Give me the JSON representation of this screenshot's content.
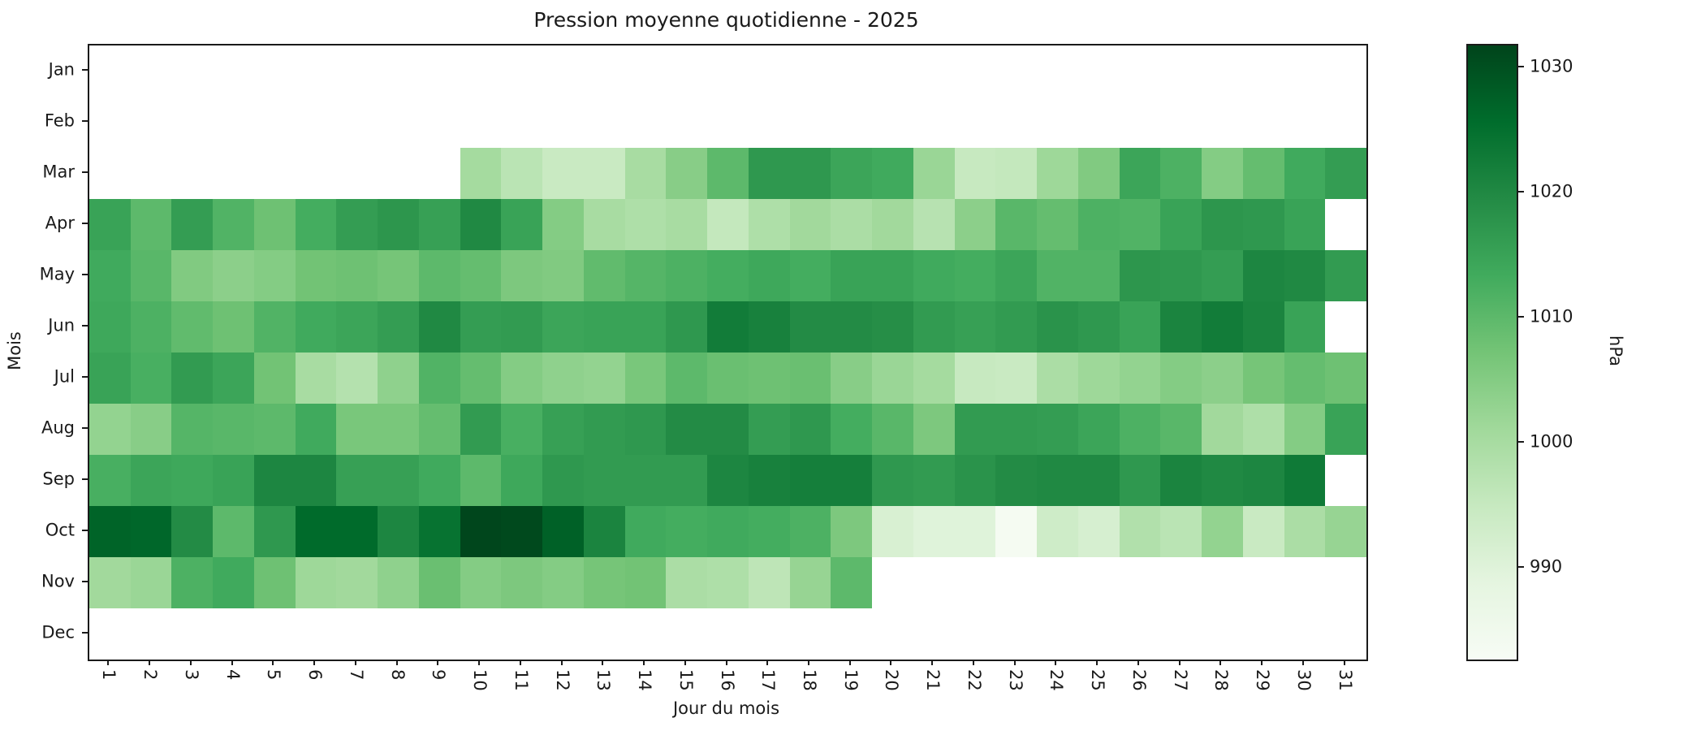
{
  "figure": {
    "title": "Pression moyenne quotidienne - 2025",
    "xlabel": "Jour du mois",
    "ylabel": "Mois",
    "background_color": "#ffffff",
    "axis_color": "#1a1a1a"
  },
  "chart_data": {
    "type": "heatmap",
    "title": "Pression moyenne quotidienne - 2025",
    "xlabel": "Jour du mois",
    "ylabel": "Mois",
    "x": [
      "1",
      "2",
      "3",
      "4",
      "5",
      "6",
      "7",
      "8",
      "9",
      "10",
      "11",
      "12",
      "13",
      "14",
      "15",
      "16",
      "17",
      "18",
      "19",
      "20",
      "21",
      "22",
      "23",
      "24",
      "25",
      "26",
      "27",
      "28",
      "29",
      "30",
      "31"
    ],
    "y": [
      "Jan",
      "Feb",
      "Mar",
      "Apr",
      "May",
      "Jun",
      "Jul",
      "Aug",
      "Sep",
      "Oct",
      "Nov",
      "Dec"
    ],
    "colorbar": {
      "label": "hPa",
      "ticks": [
        1030,
        1020,
        1010,
        1000,
        990
      ],
      "vmin": 982.7,
      "vmax": 1031.8,
      "colormap": "Greens",
      "colormap_stops": [
        "#f7fcf5",
        "#e5f5e0",
        "#c7e9c0",
        "#a1d99b",
        "#74c476",
        "#41ab5d",
        "#238b45",
        "#006d2c",
        "#00441b"
      ]
    },
    "missing_color": "#ffffff",
    "values": [
      [
        null,
        null,
        null,
        null,
        null,
        null,
        null,
        null,
        null,
        null,
        null,
        null,
        null,
        null,
        null,
        null,
        null,
        null,
        null,
        null,
        null,
        null,
        null,
        null,
        null,
        null,
        null,
        null,
        null,
        null,
        null
      ],
      [
        null,
        null,
        null,
        null,
        null,
        null,
        null,
        null,
        null,
        null,
        null,
        null,
        null,
        null,
        null,
        null,
        null,
        null,
        null,
        null,
        null,
        null,
        null,
        null,
        null,
        null,
        null,
        null,
        null,
        null,
        null
      ],
      [
        null,
        null,
        null,
        null,
        null,
        null,
        null,
        null,
        null,
        1000.5,
        997,
        994.5,
        994.5,
        1000,
        1004.5,
        1010,
        1017,
        1017,
        1014.5,
        1013.5,
        1002,
        995,
        995.5,
        1001.5,
        1005.5,
        1014.5,
        1012,
        1005,
        1009,
        1013.5,
        1016
      ],
      [
        1015,
        1010,
        1016,
        1011.5,
        1008,
        1013,
        1016,
        1017.5,
        1015.5,
        1020,
        1015,
        1005,
        1000,
        999,
        1000,
        995.5,
        999,
        1001,
        999.5,
        1001,
        997.5,
        1004,
        1010.5,
        1009,
        1012,
        1011.5,
        1015,
        1017.5,
        1017,
        1015,
        null
      ],
      [
        1013.5,
        1010.5,
        1005.5,
        1004,
        1005,
        1007.5,
        1008,
        1007,
        1010,
        1009,
        1006,
        1005.5,
        1009.5,
        1011,
        1012,
        1013,
        1014,
        1013,
        1015,
        1015,
        1013.5,
        1013,
        1014.5,
        1011.5,
        1011.5,
        1017.5,
        1017,
        1016,
        1020.5,
        1020,
        1016.5
      ],
      [
        1014,
        1012,
        1009.5,
        1008,
        1011.5,
        1013.5,
        1014.5,
        1016,
        1020,
        1016,
        1016.5,
        1014.5,
        1015,
        1015,
        1017,
        1022.5,
        1021.5,
        1019.5,
        1019.5,
        1019,
        1016.5,
        1015.5,
        1016.5,
        1018,
        1017,
        1015,
        1021,
        1022.5,
        1021,
        1015,
        null
      ],
      [
        1015,
        1012.5,
        1016.5,
        1014.5,
        1007.5,
        1000,
        998,
        1003.5,
        1011.5,
        1009,
        1005,
        1003.5,
        1003,
        1006.5,
        1010,
        1008.5,
        1008,
        1008.5,
        1004.5,
        1002,
        1000.5,
        995,
        994.5,
        999.5,
        1001.5,
        1003,
        1005,
        1004,
        1007,
        1009,
        1008
      ],
      [
        1003,
        1004.5,
        1011,
        1010.5,
        1010,
        1013.5,
        1006.5,
        1006.5,
        1009,
        1016.5,
        1012.5,
        1015.5,
        1016.5,
        1017,
        1019.5,
        1019.5,
        1016,
        1017,
        1013,
        1010.5,
        1006,
        1016.5,
        1016.5,
        1016,
        1014.5,
        1012,
        1010.5,
        1001,
        999,
        1005,
        1015
      ],
      [
        1012.5,
        1014.5,
        1014,
        1015,
        1020.5,
        1020.5,
        1015.5,
        1015.5,
        1013.5,
        1010,
        1014,
        1017,
        1016.5,
        1016.5,
        1016.5,
        1020.5,
        1021.5,
        1022,
        1022,
        1017,
        1016.5,
        1018,
        1019.5,
        1020,
        1020,
        1017,
        1021,
        1020,
        1020.5,
        1023,
        null
      ],
      [
        1027,
        1026.5,
        1019.5,
        1010,
        1017,
        1026,
        1026,
        1020.5,
        1024.5,
        1031.5,
        1031,
        1027.5,
        1021,
        1013.5,
        1013,
        1013.5,
        1013,
        1012,
        1006,
        991.5,
        990,
        990,
        983.5,
        993.5,
        992,
        998.5,
        997,
        1003,
        994.5,
        999.5,
        1002.5
      ],
      [
        1001,
        1002,
        1012,
        1013.5,
        1008,
        1001.5,
        1001,
        1003.5,
        1008.5,
        1005,
        1006,
        1005,
        1007,
        1007.5,
        999.5,
        999,
        996.5,
        1002.5,
        1010,
        null,
        null,
        null,
        null,
        null,
        null,
        null,
        null,
        null,
        null,
        null,
        null
      ],
      [
        null,
        null,
        null,
        null,
        null,
        null,
        null,
        null,
        null,
        null,
        null,
        null,
        null,
        null,
        null,
        null,
        null,
        null,
        null,
        null,
        null,
        null,
        null,
        null,
        null,
        null,
        null,
        null,
        null,
        null,
        null
      ]
    ]
  }
}
